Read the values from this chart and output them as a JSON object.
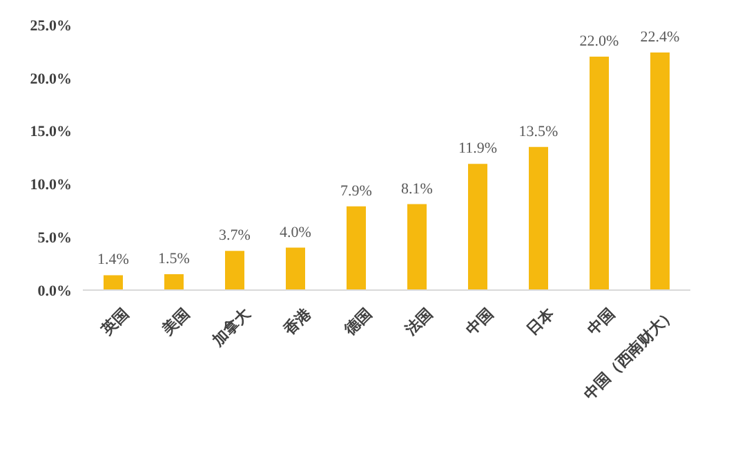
{
  "chart_data": {
    "type": "bar",
    "categories": [
      "英国",
      "美国",
      "加拿大",
      "香港",
      "德国",
      "法国",
      "中国",
      "日本",
      "中国",
      "中国（西南财大）"
    ],
    "values": [
      1.4,
      1.5,
      3.7,
      4.0,
      7.9,
      8.1,
      11.9,
      13.5,
      22.0,
      22.4
    ],
    "value_labels": [
      "1.4%",
      "1.5%",
      "3.7%",
      "4.0%",
      "7.9%",
      "8.1%",
      "11.9%",
      "13.5%",
      "22.0%",
      "22.4%"
    ],
    "color": "#f5b90f",
    "ylim": [
      0,
      25
    ],
    "yticks": [
      {
        "value": 0,
        "label": "0.0%"
      },
      {
        "value": 5,
        "label": "5.0%"
      },
      {
        "value": 10,
        "label": "10.0%"
      },
      {
        "value": 15,
        "label": "15.0%"
      },
      {
        "value": 20,
        "label": "20.0%"
      },
      {
        "value": 25,
        "label": "25.0%"
      }
    ],
    "grid": false,
    "legend": false
  }
}
